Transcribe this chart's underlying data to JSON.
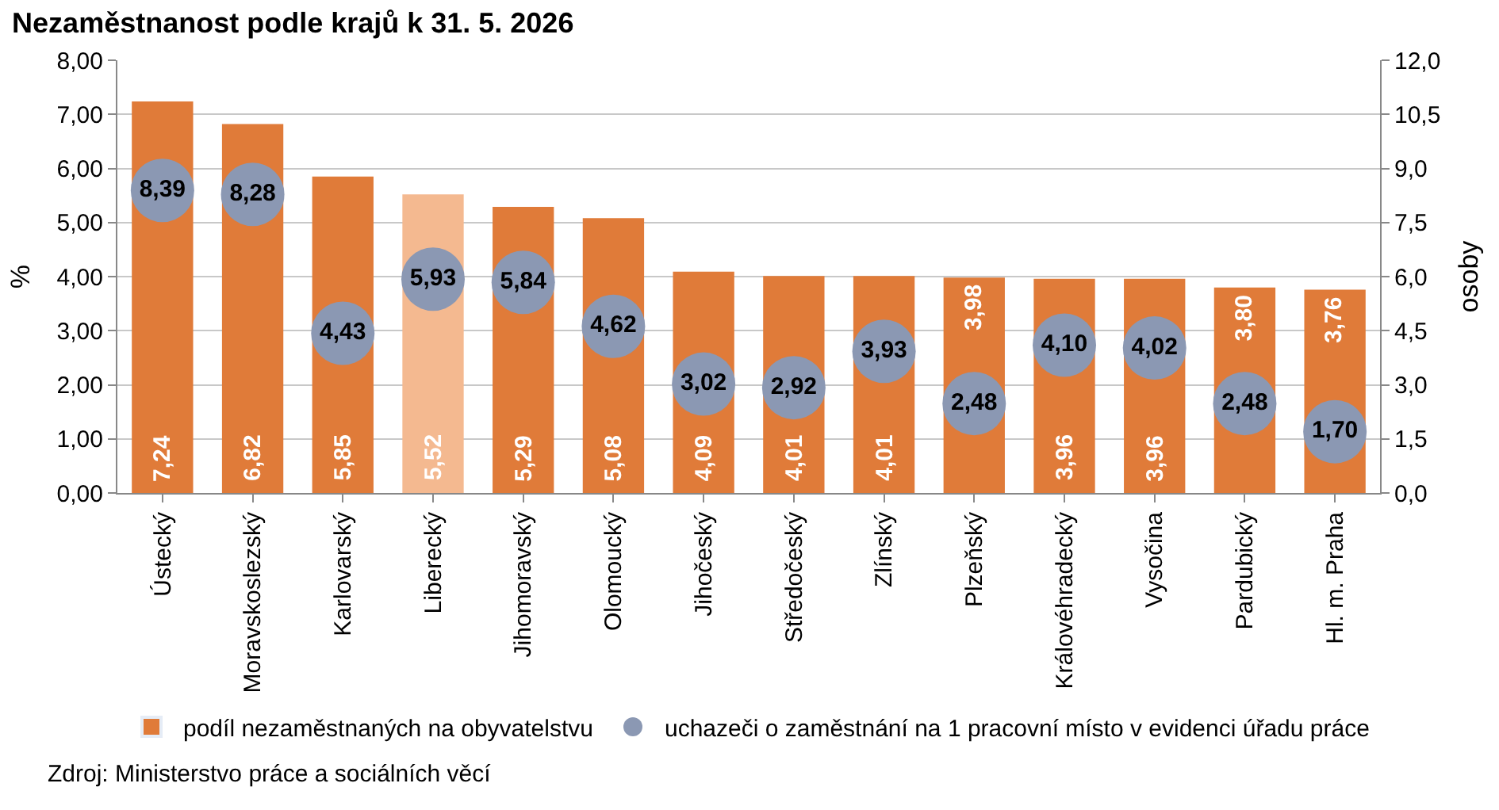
{
  "chart_data": {
    "type": "bar",
    "title": "Nezaměstnanost podle krajů k 31. 5. 2026",
    "categories": [
      "Ústecký",
      "Moravskoslezský",
      "Karlovarský",
      "Liberecký",
      "Jihomoravský",
      "Olomoucký",
      "Jihočeský",
      "Středočeský",
      "Zlínský",
      "Plzeňský",
      "Královéhradecký",
      "Vysočina",
      "Pardubický",
      "Hl. m. Praha"
    ],
    "series": [
      {
        "name": "podíl nezaměstnaných na obyvatelstvu",
        "color": "#e07b39",
        "colors": [
          "#e07b39",
          "#e07b39",
          "#e07b39",
          "#f4b990",
          "#e07b39",
          "#e07b39",
          "#e07b39",
          "#e07b39",
          "#e07b39",
          "#e07b39",
          "#e07b39",
          "#e07b39",
          "#e07b39",
          "#e07b39"
        ],
        "values": [
          7.24,
          6.82,
          5.85,
          5.52,
          5.29,
          5.08,
          4.09,
          4.01,
          4.01,
          3.98,
          3.96,
          3.96,
          3.8,
          3.76
        ],
        "value_labels": [
          "7,24",
          "6,82",
          "5,85",
          "5,52",
          "5,29",
          "5,08",
          "4,09",
          "4,01",
          "4,01",
          "3,98",
          "3,96",
          "3,96",
          "3,80",
          "3,76"
        ]
      },
      {
        "name": "uchazeči o zaměstnání na 1 pracovní místo v evidenci úřadu práce",
        "type": "scatter",
        "axis": "y2",
        "marker": "circle",
        "color": "#8b98b3",
        "values": [
          8.39,
          8.28,
          4.43,
          5.93,
          5.84,
          4.62,
          3.02,
          2.92,
          3.93,
          2.48,
          4.1,
          4.02,
          2.48,
          1.7
        ],
        "value_labels": [
          "8,39",
          "8,28",
          "4,43",
          "5,93",
          "5,84",
          "4,62",
          "3,02",
          "2,92",
          "3,93",
          "2,48",
          "4,10",
          "4,02",
          "2,48",
          "1,70"
        ]
      }
    ],
    "ylabel": "%",
    "y2label": "osoby",
    "ylim": [
      0,
      8
    ],
    "yticks": [
      {
        "value": 0,
        "label": "0,00"
      },
      {
        "value": 1,
        "label": "1,00"
      },
      {
        "value": 2,
        "label": "2,00"
      },
      {
        "value": 3,
        "label": "3,00"
      },
      {
        "value": 4,
        "label": "4,00"
      },
      {
        "value": 5,
        "label": "5,00"
      },
      {
        "value": 6,
        "label": "6,00"
      },
      {
        "value": 7,
        "label": "7,00"
      },
      {
        "value": 8,
        "label": "8,00"
      }
    ],
    "y2lim": [
      0,
      12
    ],
    "y2ticks": [
      {
        "value": 0,
        "label": "0,0"
      },
      {
        "value": 1.5,
        "label": "1,5"
      },
      {
        "value": 3,
        "label": "3,0"
      },
      {
        "value": 4.5,
        "label": "4,5"
      },
      {
        "value": 6,
        "label": "6,0"
      },
      {
        "value": 7.5,
        "label": "7,5"
      },
      {
        "value": 9,
        "label": "9,0"
      },
      {
        "value": 10.5,
        "label": "10,5"
      },
      {
        "value": 12,
        "label": "12,0"
      }
    ],
    "grid": "y",
    "legend": "bottom",
    "annotations": [
      "Zdroj: Ministerstvo práce a sociálních věcí"
    ]
  }
}
